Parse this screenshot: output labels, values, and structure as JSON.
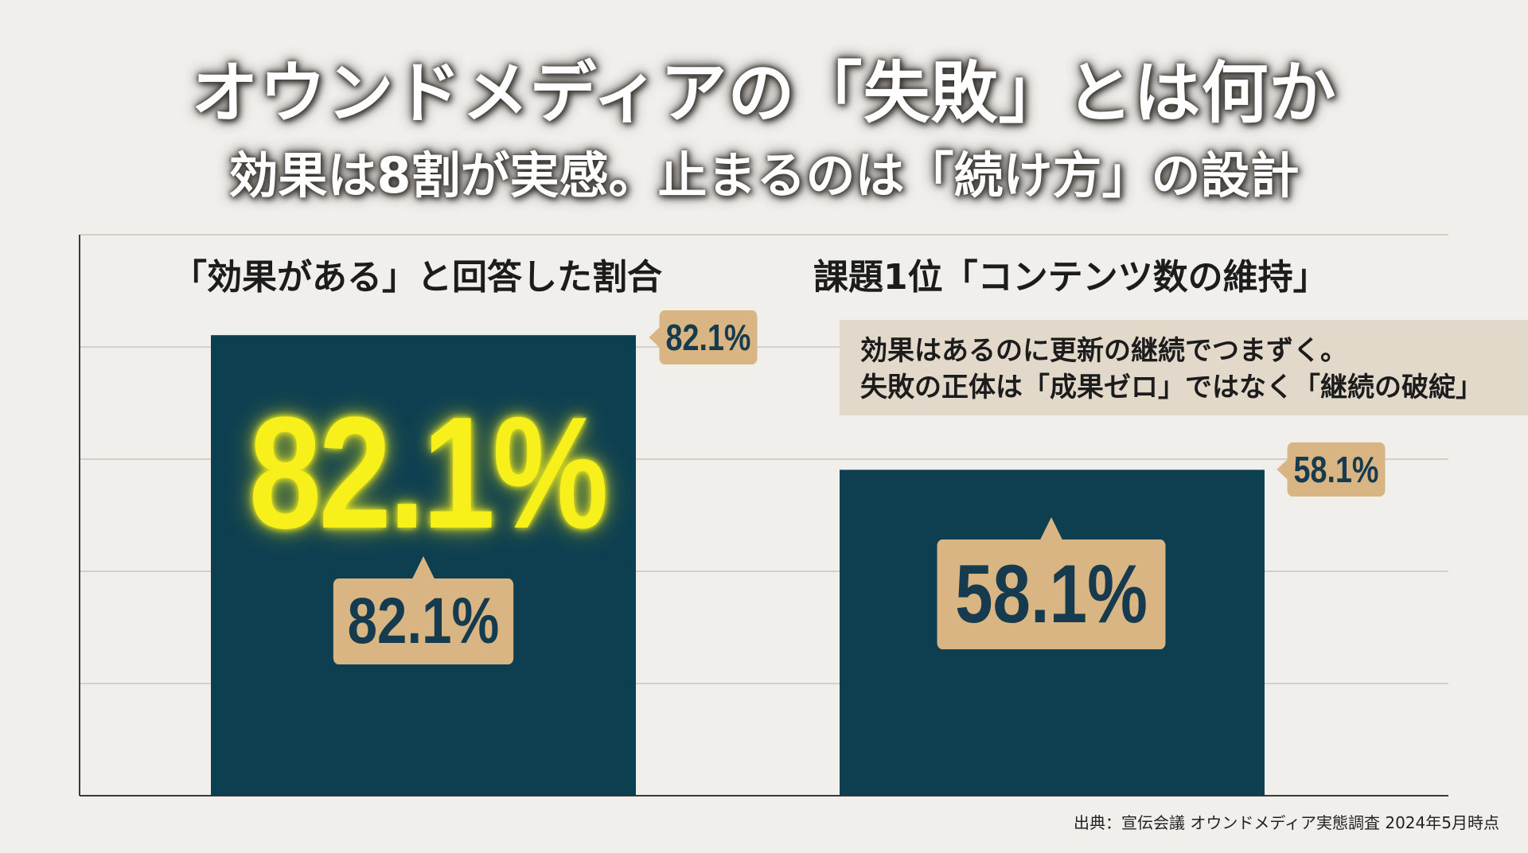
{
  "title": "オウンドメディアの「失敗」とは何か",
  "subtitle": "効果は8割が実感。止まるのは「続け方」の設計",
  "chart_data": {
    "type": "bar",
    "categories": [
      "「効果がある」と回答した割合",
      "課題1位「コンテンツ数の維持」"
    ],
    "values": [
      82.1,
      58.1
    ],
    "unit": "%",
    "ylim": [
      0,
      100
    ],
    "grid": true,
    "colors": {
      "bar": "#0e3f51",
      "grid": "#c8c5c0",
      "axis": "#3a3a3a"
    },
    "value_labels": [
      "82.1%",
      "58.1%"
    ]
  },
  "highlight_value": "82.1%",
  "callout": {
    "line1": "効果はあるのに更新の継続でつまずく。",
    "line2": "失敗の正体は「成果ゼロ」ではなく「継続の破綻」"
  },
  "source": "出典：宣伝会議 オウンドメディア実態調査 2024年5月時点"
}
